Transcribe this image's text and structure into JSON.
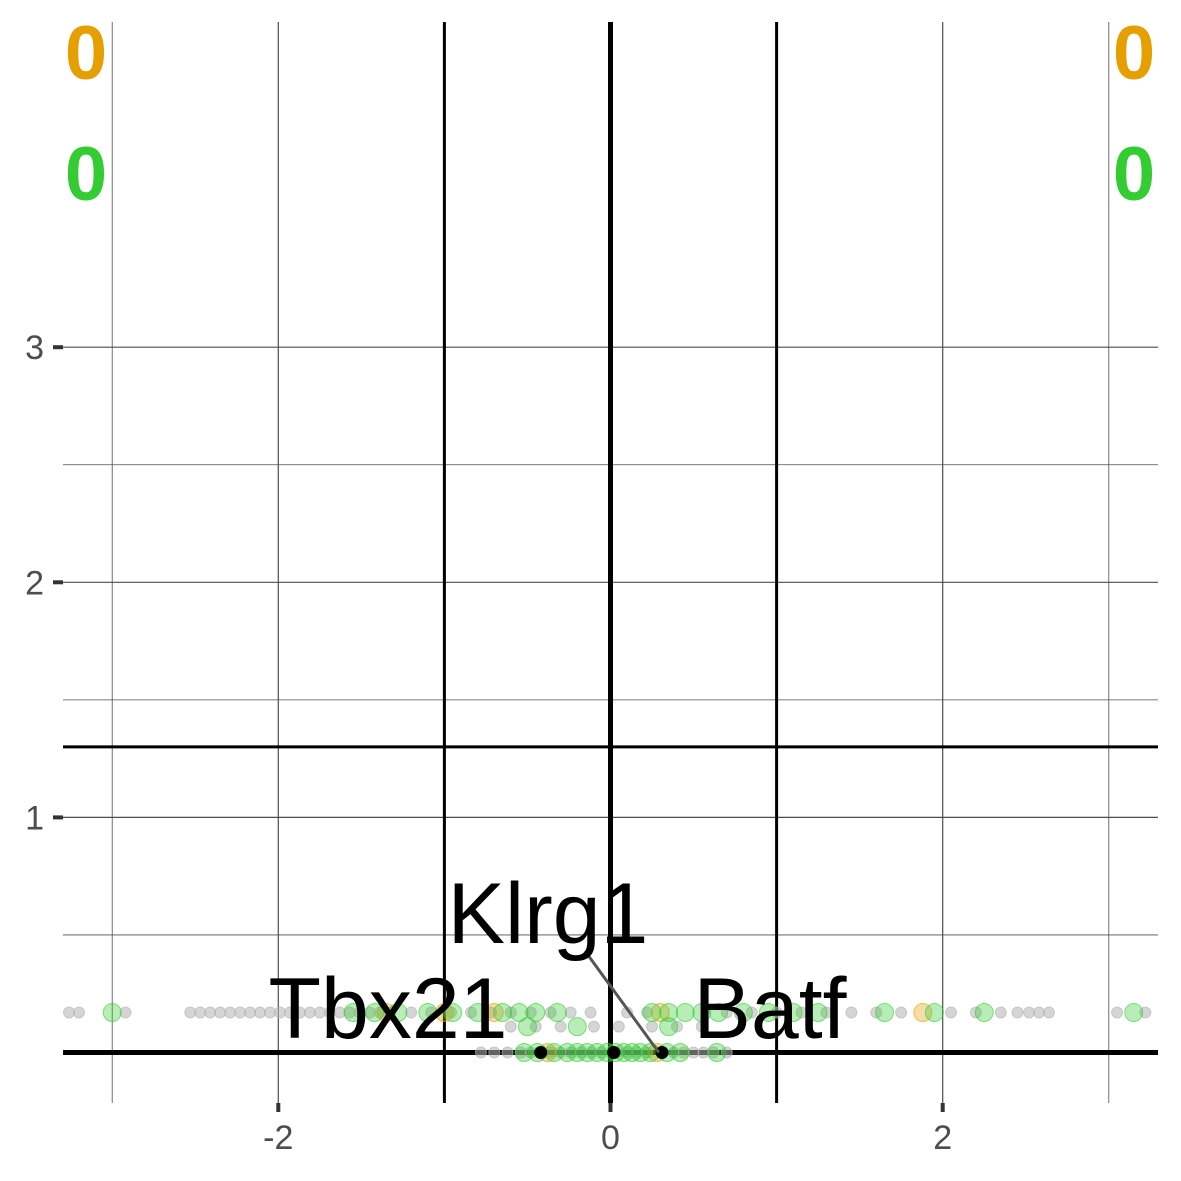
{
  "chart_data": {
    "type": "scatter",
    "title": "",
    "xlabel": "",
    "ylabel": "",
    "xlim": [
      -3.3,
      3.3
    ],
    "ylim": [
      -0.07,
      3.25
    ],
    "x_ticks": [
      -2,
      0,
      2
    ],
    "x_tick_labels": [
      "-2",
      "0",
      "2"
    ],
    "x_minor_ticks": [
      -3,
      -1,
      1,
      3
    ],
    "y_ticks": [
      1,
      2,
      3
    ],
    "y_tick_labels": [
      "1",
      "2",
      "3"
    ],
    "y_minor_ticks": [
      0.5,
      1.5,
      2.5
    ],
    "threshold_lines": {
      "x_fold_change": [
        -1,
        1
      ],
      "y_significance": 1.3,
      "x_zero": 0,
      "y_zero": 0
    },
    "colors": {
      "up": "#e69f00",
      "down": "#33cc33",
      "neutral": "#b3b3b3",
      "labelled": "#000000"
    },
    "counts": {
      "top_left_up": "0",
      "top_left_down": "0",
      "top_right_up": "0",
      "top_right_down": "0"
    },
    "labelled_genes": [
      {
        "gene": "Tbx21",
        "x": -0.42,
        "y": 0.0
      },
      {
        "gene": "Batf",
        "x": 0.31,
        "y": 0.0
      },
      {
        "gene": "Klrg1",
        "x": 0.02,
        "y": 0.0
      }
    ],
    "series": [
      {
        "name": "neutral",
        "color": "#b3b3b3",
        "points": [
          [
            -3.26,
            0.17
          ],
          [
            -3.2,
            0.17
          ],
          [
            -2.92,
            0.17
          ],
          [
            -2.53,
            0.17
          ],
          [
            -2.47,
            0.17
          ],
          [
            -2.41,
            0.17
          ],
          [
            -2.35,
            0.17
          ],
          [
            -2.29,
            0.17
          ],
          [
            -2.23,
            0.17
          ],
          [
            -2.17,
            0.17
          ],
          [
            -2.11,
            0.17
          ],
          [
            -2.05,
            0.17
          ],
          [
            -1.99,
            0.17
          ],
          [
            -1.93,
            0.17
          ],
          [
            -1.87,
            0.17
          ],
          [
            -1.81,
            0.17
          ],
          [
            -1.75,
            0.17
          ],
          [
            -1.69,
            0.17
          ],
          [
            -1.63,
            0.17
          ],
          [
            -1.57,
            0.17
          ],
          [
            -1.51,
            0.17
          ],
          [
            -1.45,
            0.17
          ],
          [
            -1.39,
            0.17
          ],
          [
            -1.33,
            0.17
          ],
          [
            -1.2,
            0.17
          ],
          [
            -1.08,
            0.17
          ],
          [
            -0.96,
            0.17
          ],
          [
            -0.84,
            0.17
          ],
          [
            -0.72,
            0.17
          ],
          [
            -0.6,
            0.17
          ],
          [
            -0.48,
            0.17
          ],
          [
            -0.36,
            0.17
          ],
          [
            -0.24,
            0.17
          ],
          [
            -0.12,
            0.17
          ],
          [
            0.1,
            0.17
          ],
          [
            0.22,
            0.17
          ],
          [
            0.7,
            0.17
          ],
          [
            0.85,
            0.17
          ],
          [
            1.0,
            0.17
          ],
          [
            1.15,
            0.17
          ],
          [
            1.3,
            0.17
          ],
          [
            1.45,
            0.17
          ],
          [
            1.6,
            0.17
          ],
          [
            1.75,
            0.17
          ],
          [
            2.05,
            0.17
          ],
          [
            2.2,
            0.17
          ],
          [
            2.35,
            0.17
          ],
          [
            2.45,
            0.17
          ],
          [
            2.52,
            0.17
          ],
          [
            2.58,
            0.17
          ],
          [
            2.64,
            0.17
          ],
          [
            3.05,
            0.17
          ],
          [
            3.22,
            0.17
          ],
          [
            -0.6,
            0.11
          ],
          [
            -0.45,
            0.11
          ],
          [
            -0.3,
            0.11
          ],
          [
            -0.1,
            0.11
          ],
          [
            0.05,
            0.11
          ],
          [
            0.25,
            0.11
          ],
          [
            0.4,
            0.11
          ],
          [
            0.55,
            0.11
          ],
          [
            -0.78,
            0.0
          ],
          [
            -0.7,
            0.0
          ],
          [
            -0.62,
            0.0
          ],
          [
            -0.54,
            0.0
          ],
          [
            -0.48,
            0.0
          ],
          [
            -0.36,
            0.0
          ],
          [
            -0.3,
            0.0
          ],
          [
            -0.24,
            0.0
          ],
          [
            -0.18,
            0.0
          ],
          [
            -0.12,
            0.0
          ],
          [
            -0.06,
            0.0
          ],
          [
            0.04,
            0.0
          ],
          [
            0.1,
            0.0
          ],
          [
            0.16,
            0.0
          ],
          [
            0.22,
            0.0
          ],
          [
            0.38,
            0.0
          ],
          [
            0.44,
            0.0
          ],
          [
            0.5,
            0.0
          ],
          [
            0.56,
            0.0
          ],
          [
            0.62,
            0.0
          ],
          [
            0.7,
            0.0
          ]
        ]
      },
      {
        "name": "up",
        "color": "#e69f00",
        "points": [
          [
            -1.35,
            0.17
          ],
          [
            -1.0,
            0.17
          ],
          [
            -0.7,
            0.17
          ],
          [
            0.3,
            0.17
          ],
          [
            1.88,
            0.17
          ],
          [
            -0.38,
            0.0
          ],
          [
            0.28,
            0.0
          ]
        ]
      },
      {
        "name": "down",
        "color": "#33cc33",
        "points": [
          [
            -3.0,
            0.17
          ],
          [
            -1.55,
            0.17
          ],
          [
            -1.42,
            0.17
          ],
          [
            -1.28,
            0.17
          ],
          [
            -1.1,
            0.17
          ],
          [
            -0.95,
            0.17
          ],
          [
            -0.8,
            0.17
          ],
          [
            -0.65,
            0.17
          ],
          [
            -0.55,
            0.17
          ],
          [
            -0.45,
            0.17
          ],
          [
            -0.32,
            0.17
          ],
          [
            0.25,
            0.17
          ],
          [
            0.35,
            0.17
          ],
          [
            0.45,
            0.17
          ],
          [
            0.55,
            0.17
          ],
          [
            0.65,
            0.17
          ],
          [
            0.8,
            0.17
          ],
          [
            0.95,
            0.17
          ],
          [
            1.1,
            0.17
          ],
          [
            1.25,
            0.17
          ],
          [
            1.65,
            0.17
          ],
          [
            1.95,
            0.17
          ],
          [
            2.25,
            0.17
          ],
          [
            3.15,
            0.17
          ],
          [
            -0.5,
            0.11
          ],
          [
            -0.2,
            0.11
          ],
          [
            0.35,
            0.11
          ],
          [
            -0.52,
            0.0
          ],
          [
            -0.44,
            0.0
          ],
          [
            -0.34,
            0.0
          ],
          [
            -0.26,
            0.0
          ],
          [
            -0.2,
            0.0
          ],
          [
            -0.14,
            0.0
          ],
          [
            -0.08,
            0.0
          ],
          [
            -0.02,
            0.0
          ],
          [
            0.03,
            0.0
          ],
          [
            0.08,
            0.0
          ],
          [
            0.13,
            0.0
          ],
          [
            0.18,
            0.0
          ],
          [
            0.24,
            0.0
          ],
          [
            0.34,
            0.0
          ],
          [
            0.42,
            0.0
          ],
          [
            0.64,
            0.0
          ]
        ]
      }
    ]
  }
}
